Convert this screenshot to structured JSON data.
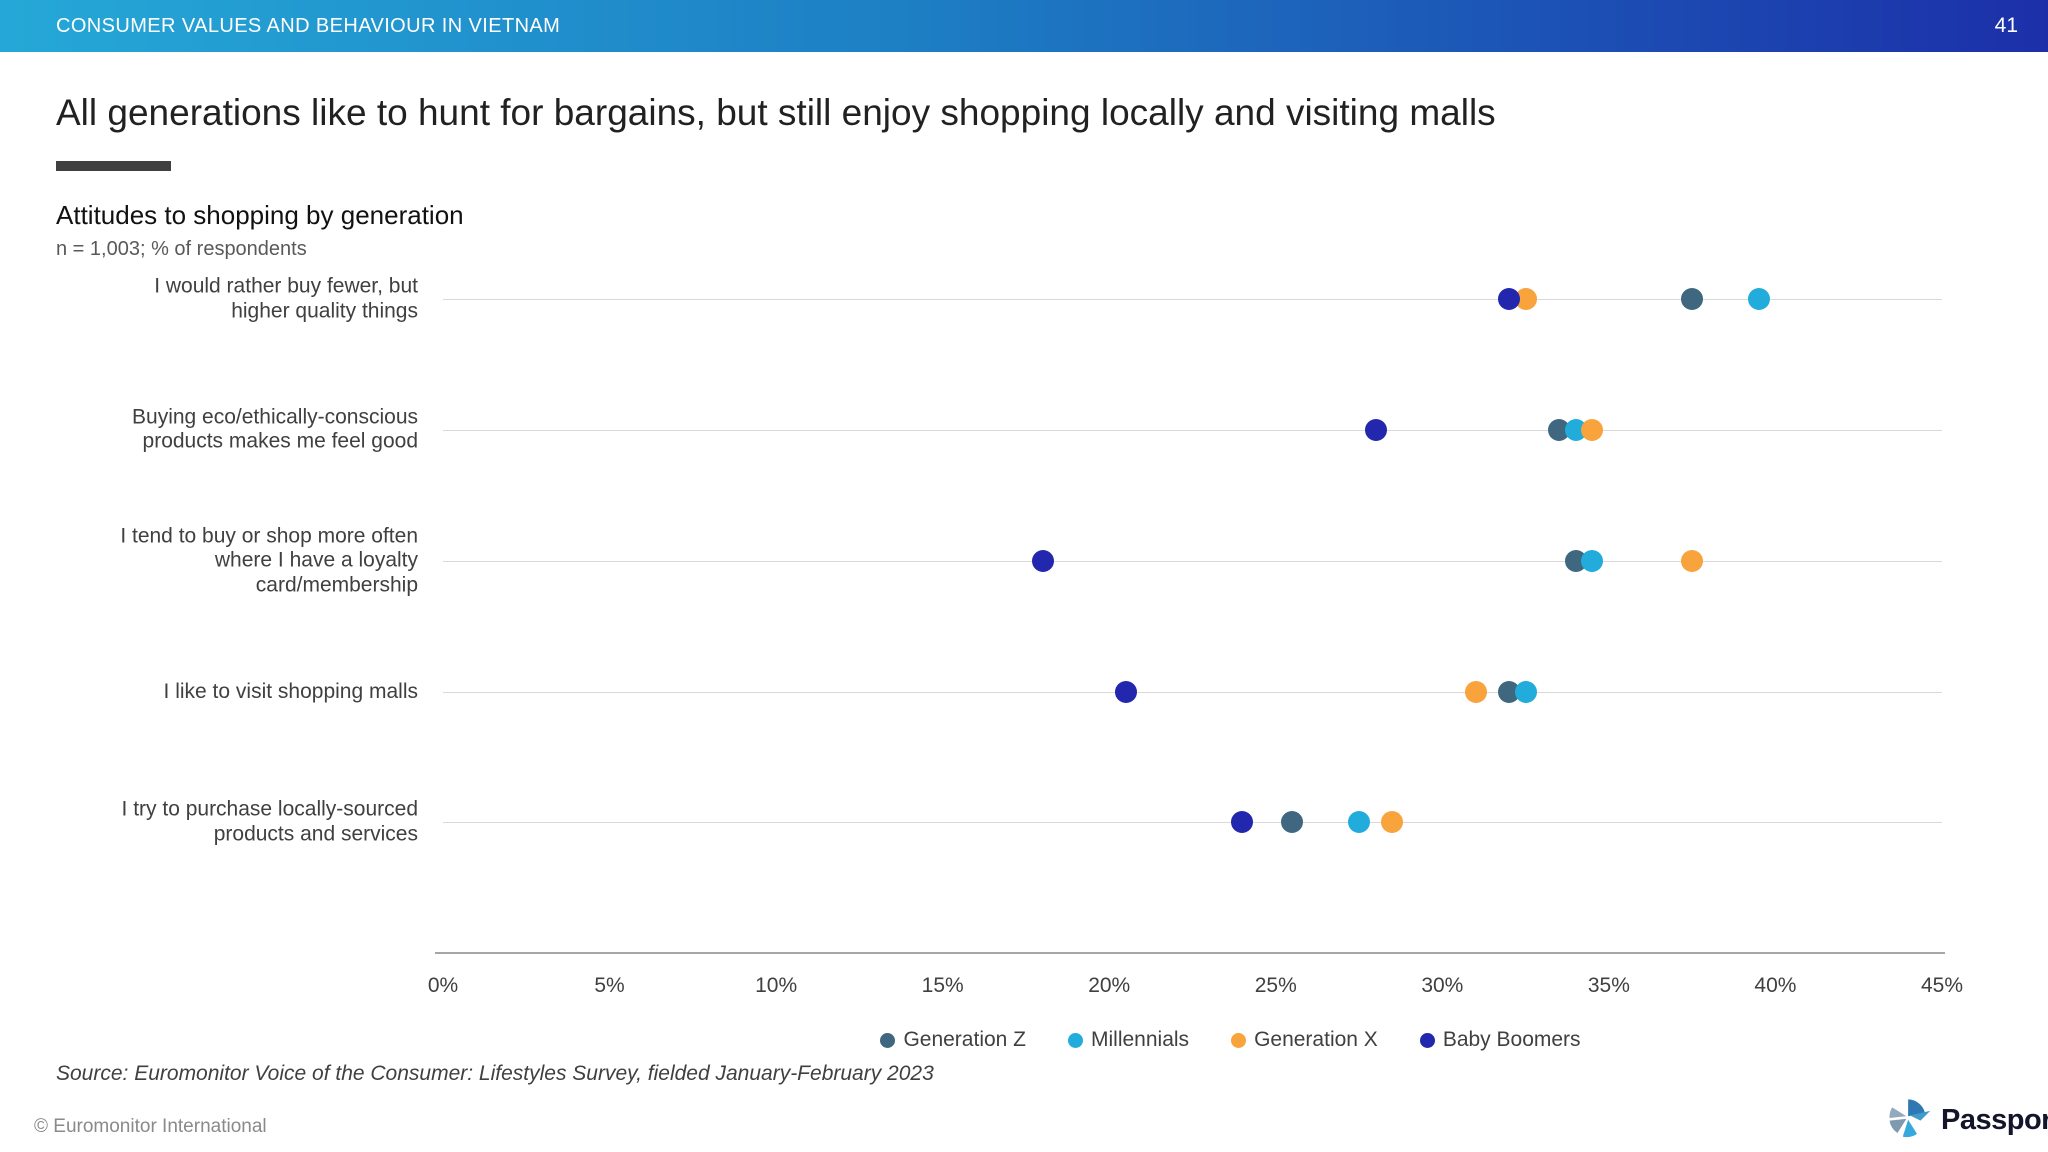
{
  "header": {
    "title": "CONSUMER VALUES AND BEHAVIOUR IN VIETNAM",
    "page_number": "41"
  },
  "slide": {
    "title": "All generations like to hunt for bargains, but still enjoy shopping locally and visiting malls"
  },
  "chart_header": {
    "title": "Attitudes to shopping by generation",
    "subtitle": "n = 1,003; % of respondents"
  },
  "chart_data": {
    "type": "scatter",
    "title": "Attitudes to shopping by generation",
    "xlabel": "% of respondents",
    "ylabel": "",
    "xlim": [
      0,
      45
    ],
    "xticks": [
      0,
      5,
      10,
      15,
      20,
      25,
      30,
      35,
      40,
      45
    ],
    "xtick_labels": [
      "0%",
      "5%",
      "10%",
      "15%",
      "20%",
      "25%",
      "30%",
      "35%",
      "40%",
      "45%"
    ],
    "grid": "horizontal-category-lines",
    "legend_position": "bottom-center",
    "categories": [
      [
        "I would rather buy fewer, but",
        "higher quality things"
      ],
      [
        "Buying eco/ethically-conscious",
        "products makes me feel good"
      ],
      [
        "I tend to buy or shop more often",
        "where I have a loyalty",
        "card/membership"
      ],
      [
        "I like to visit shopping malls"
      ],
      [
        "I try to purchase locally-sourced",
        "products and services"
      ]
    ],
    "series": [
      {
        "name": "Generation Z",
        "color": "#3F6880",
        "values": [
          37.5,
          33.5,
          34.0,
          32.0,
          25.5
        ]
      },
      {
        "name": "Millennials",
        "color": "#22ACDC",
        "values": [
          39.5,
          34.0,
          34.5,
          32.5,
          27.5
        ]
      },
      {
        "name": "Generation X",
        "color": "#F8A33C",
        "values": [
          32.5,
          34.5,
          37.5,
          31.0,
          28.5
        ]
      },
      {
        "name": "Baby Boomers",
        "color": "#2227AE",
        "values": [
          32.0,
          28.0,
          18.0,
          20.5,
          24.0
        ]
      }
    ]
  },
  "colors": {
    "header_gradient_left": "#25A8D7",
    "header_gradient_right": "#1C2FA9",
    "gridline": "#D9D9D9",
    "axis_line": "#A6A6A6",
    "title_underline": "#404040"
  },
  "source": {
    "text": "Source: Euromonitor Voice of the Consumer: Lifestyles Survey, fielded January-February 2023"
  },
  "footer": {
    "copyright": "© Euromonitor International",
    "logo_text": "Passport"
  }
}
